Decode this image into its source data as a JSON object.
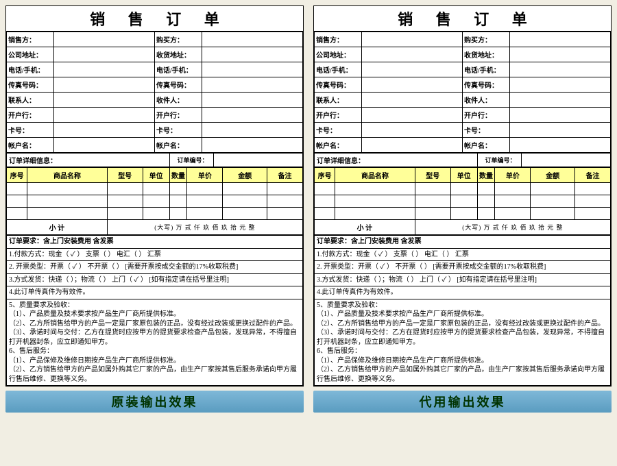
{
  "title": "销 售 订 单",
  "fields": {
    "seller": "销售方：",
    "buyer": "购买方：",
    "addr": "公司地址：",
    "shipAddr": "收货地址：",
    "phone": "电话/手机：",
    "phone2": "电话/手机：",
    "fax": "传真号码：",
    "fax2": "传真号码：",
    "contact": "联系人：",
    "recipient": "收件人：",
    "bank": "开户行：",
    "bank2": "开户行：",
    "card": "卡号：",
    "card2": "卡号：",
    "acct": "帐户名：",
    "acct2": "帐户名："
  },
  "detail": {
    "title": "订单详细信息：",
    "orderNoLabel": "订单编号：",
    "cols": {
      "no": "序号",
      "name": "商品名称",
      "model": "型号",
      "unit": "单位",
      "qty": "数量",
      "price": "单价",
      "amount": "金额",
      "note": "备注"
    },
    "subtotal": "小  计",
    "subtotalWords": "(大写) 万  贰 仟 玖 佰 玖 拾 元 整"
  },
  "terms": {
    "req": "订单要求：含上门安装费用 含发票",
    "pay": "1.付款方式：现金（  ✓ ）  支票（      ）  电汇（      ）  汇票",
    "inv": "2. 开票类型：开票（   ✓ ）  不开票（      ）    [需要开票按成交金额的17%收取税费]",
    "ship": "3.方式发货：快递（      ）；物流（      ）  上门（  ✓  ）        [如有指定请在括号里注明]",
    "fax": "4.此订单传真件为有效件。",
    "q": "5、质量要求及验收：",
    "q1": "（1）、产品质量及技术要求按产品生产厂商所提供标准。",
    "q2": "（2）、乙方所销售给甲方的产品一定是厂家原包装的正品，没有经过改装或更换过配件的产品。",
    "q3": "（3）、承诺时间与交付：乙方在提货时应按甲方的提货要求检查产品包装，发现异常，不得擅自打开机器封条，应立即通知甲方。",
    "s": "6、售后服务：",
    "s1": "（1）、产品保修及维修日期按产品生产厂商所提供标准。",
    "s2": "（2）、乙方销售给甲方的产品如属外购其它厂家的产品，由生产厂家按其售后服务承诺向甲方履行售后维修、更换等义务。"
  },
  "captions": {
    "left": "原装输出效果",
    "right": "代用输出效果"
  },
  "colors": {
    "headerBg": "#ffff99",
    "capBg": "#6aa8c8",
    "pageBg": "#f1eee3"
  }
}
